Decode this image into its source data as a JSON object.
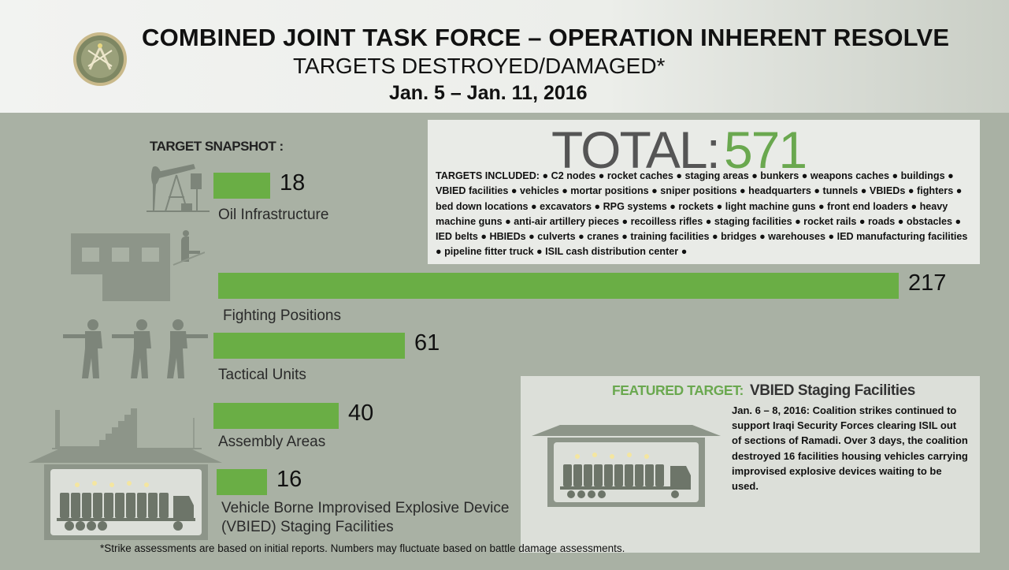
{
  "header": {
    "title": "COMBINED JOINT TASK FORCE – OPERATION INHERENT RESOLVE",
    "subtitle": "TARGETS DESTROYED/DAMAGED*",
    "date_range": "Jan. 5 – Jan. 11,  2016"
  },
  "snapshot_label": "TARGET SNAPSHOT :",
  "total": {
    "label": "TOTAL:",
    "value": "571",
    "included": "TARGETS INCLUDED: ● C2 nodes ● rocket caches ● staging areas ● bunkers ● weapons caches ● buildings ● VBIED facilities ● vehicles ● mortar positions ● sniper positions ● headquarters ● tunnels ● VBIEDs ● fighters ● bed down locations ● excavators ● RPG systems ● rockets ● light machine guns ● front end loaders ● heavy machine guns ● anti-air artillery pieces ● recoilless rifles ● staging facilities ● rocket rails ● roads ● obstacles ● IED belts ● HBIEDs ● culverts ● cranes ● training facilities ● bridges ● warehouses ● IED manufacturing facilities ● pipeline fitter truck ● ISIL cash distribution center ●"
  },
  "chart_data": {
    "type": "bar",
    "categories": [
      "Oil Infrastructure",
      "Fighting Positions",
      "Tactical Units",
      "Assembly Areas",
      "Vehicle Borne Improvised Explosive Device (VBIED) Staging Facilities"
    ],
    "values": [
      18,
      217,
      61,
      40,
      16
    ],
    "value_labels": [
      "18",
      "217",
      "61",
      "40",
      "16"
    ],
    "category_lines": [
      [
        "Oil Infrastructure"
      ],
      [
        "Fighting Positions"
      ],
      [
        "Tactical Units"
      ],
      [
        "Assembly Areas"
      ],
      [
        "Vehicle Borne Improvised Explosive Device",
        "(VBIED) Staging Facilities"
      ]
    ],
    "orientation": "horizontal",
    "bar_color": "#6aae45",
    "title": "",
    "xlabel": "",
    "ylabel": ""
  },
  "featured": {
    "label": "FEATURED TARGET:",
    "name": "VBIED Staging Facilities",
    "text": "Jan. 6 – 8, 2016:  Coalition strikes continued to support Iraqi Security Forces clearing ISIL out of sections of Ramadi. Over 3 days, the coalition destroyed 16 facilities housing vehicles carrying improvised explosive devices waiting to be used."
  },
  "footnote": "*Strike assessments are based on initial reports. Numbers may fluctuate based on battle damage assessments.",
  "icons": [
    "emblem-icon",
    "oil-pump-icon",
    "building-sniper-icon",
    "soldiers-icon",
    "stairs-icon",
    "vbied-truck-icon"
  ],
  "colors": {
    "accent": "#6aa84f",
    "bar": "#6aae45",
    "background": "#a9b1a4",
    "silhouette": "#7d857a"
  }
}
